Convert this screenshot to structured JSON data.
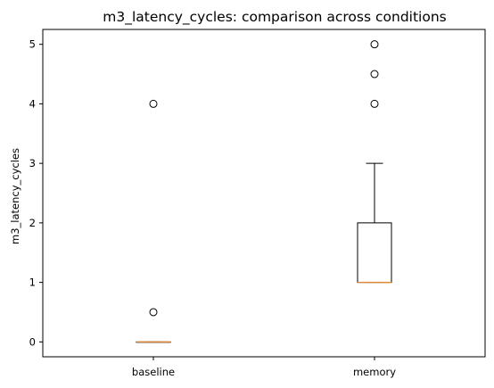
{
  "chart_data": {
    "type": "boxplot",
    "title": "m3_latency_cycles: comparison across conditions",
    "xlabel": "",
    "ylabel": "m3_latency_cycles",
    "ylim": [
      -0.25,
      5.25
    ],
    "yticks": [
      0,
      1,
      2,
      3,
      4,
      5
    ],
    "categories": [
      "baseline",
      "memory"
    ],
    "boxes": [
      {
        "name": "baseline",
        "q1": 0,
        "median": 0,
        "q3": 0,
        "whisker_low": 0,
        "whisker_high": 0,
        "outliers": [
          0.5,
          4
        ]
      },
      {
        "name": "memory",
        "q1": 1,
        "median": 1,
        "q3": 2,
        "whisker_low": 1,
        "whisker_high": 3,
        "outliers": [
          4,
          4.5,
          5
        ]
      }
    ],
    "colors": {
      "median": "#e08a3a",
      "box": "#000000"
    },
    "grid": false,
    "legend": "none"
  }
}
